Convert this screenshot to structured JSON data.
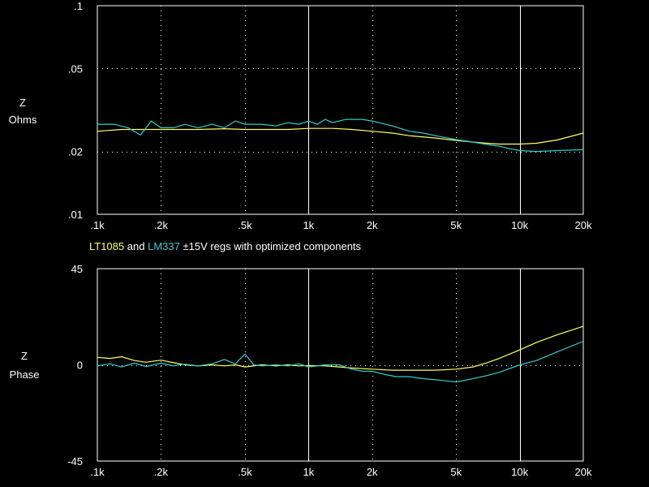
{
  "caption": {
    "series1": "LT1085",
    "and": "and",
    "series2": "LM337",
    "rest": "±15V regs with optimized components"
  },
  "colors": {
    "series1": "#ffff66",
    "series2": "#33cccc",
    "grid": "#ffffff"
  },
  "chart_data": [
    {
      "type": "line",
      "title": "",
      "ylabel": [
        "Z",
        "Ohms"
      ],
      "xlabel": "",
      "xscale": "log",
      "yscale": "log",
      "xlim": [
        100,
        20000
      ],
      "ylim": [
        0.01,
        0.1
      ],
      "xticks": [
        100,
        200,
        500,
        1000,
        2000,
        5000,
        10000,
        20000
      ],
      "xtick_labels": [
        ".1k",
        ".2k",
        ".5k",
        "1k",
        "2k",
        "5k",
        "10k",
        "20k"
      ],
      "yticks": [
        0.01,
        0.02,
        0.05,
        0.1
      ],
      "ytick_labels": [
        ".01",
        ".02",
        ".05",
        ".1"
      ],
      "grid": "dotted",
      "series": [
        {
          "name": "LT1085",
          "color": "#ffff66",
          "x": [
            100,
            130,
            160,
            200,
            250,
            300,
            400,
            500,
            600,
            800,
            1000,
            1300,
            1600,
            2000,
            2500,
            3000,
            4000,
            5000,
            6000,
            7000,
            8000,
            10000,
            12000,
            15000,
            20000
          ],
          "y": [
            0.025,
            0.0255,
            0.0255,
            0.0255,
            0.0255,
            0.0255,
            0.0257,
            0.0255,
            0.0255,
            0.0255,
            0.0258,
            0.0258,
            0.0255,
            0.025,
            0.0245,
            0.0238,
            0.0232,
            0.0226,
            0.0222,
            0.0219,
            0.0217,
            0.0217,
            0.0219,
            0.0227,
            0.0245
          ]
        },
        {
          "name": "LM337",
          "color": "#33cccc",
          "x": [
            100,
            120,
            140,
            160,
            180,
            200,
            230,
            260,
            300,
            350,
            400,
            450,
            500,
            600,
            700,
            800,
            900,
            1000,
            1100,
            1200,
            1300,
            1500,
            1800,
            2000,
            2500,
            3000,
            3500,
            4000,
            5000,
            6000,
            7000,
            8000,
            9000,
            10000,
            12000,
            15000,
            20000
          ],
          "y": [
            0.027,
            0.027,
            0.026,
            0.024,
            0.028,
            0.026,
            0.026,
            0.027,
            0.026,
            0.027,
            0.026,
            0.028,
            0.027,
            0.027,
            0.0265,
            0.0275,
            0.027,
            0.028,
            0.027,
            0.0285,
            0.0275,
            0.0285,
            0.0285,
            0.028,
            0.0265,
            0.025,
            0.0245,
            0.0238,
            0.0228,
            0.0222,
            0.0216,
            0.0212,
            0.0206,
            0.0202,
            0.02,
            0.0202,
            0.0204
          ]
        }
      ]
    },
    {
      "type": "line",
      "title": "",
      "ylabel": [
        "Z",
        "Phase"
      ],
      "xlabel": "",
      "xscale": "log",
      "yscale": "linear",
      "xlim": [
        100,
        20000
      ],
      "ylim": [
        -45,
        45
      ],
      "xticks": [
        100,
        200,
        500,
        1000,
        2000,
        5000,
        10000,
        20000
      ],
      "xtick_labels": [
        ".1k",
        ".2k",
        ".5k",
        "1k",
        "2k",
        "5k",
        "10k",
        "20k"
      ],
      "yticks": [
        -45,
        0,
        45
      ],
      "ytick_labels": [
        "-45",
        "0",
        "45"
      ],
      "grid": "dotted",
      "series": [
        {
          "name": "LT1085",
          "color": "#ffff66",
          "x": [
            100,
            115,
            130,
            150,
            170,
            200,
            230,
            260,
            300,
            350,
            400,
            450,
            500,
            600,
            700,
            800,
            900,
            1000,
            1200,
            1400,
            1600,
            2000,
            2500,
            3000,
            3500,
            4000,
            5000,
            6000,
            7000,
            8000,
            10000,
            12000,
            15000,
            20000
          ],
          "y": [
            3.5,
            3,
            3.8,
            2,
            1.2,
            2.2,
            1,
            0,
            -0.5,
            0,
            -0.5,
            0,
            -1,
            0,
            -0.5,
            0,
            -0.5,
            -0.3,
            -0.5,
            -1,
            -1.5,
            -2,
            -2.5,
            -2.5,
            -2.5,
            -2.5,
            -2,
            -1,
            1,
            3,
            7,
            10.5,
            14,
            18
          ]
        },
        {
          "name": "LM337",
          "color": "#33cccc",
          "x": [
            100,
            115,
            130,
            150,
            170,
            200,
            230,
            260,
            300,
            350,
            400,
            450,
            500,
            550,
            600,
            700,
            800,
            900,
            1000,
            1200,
            1400,
            1600,
            1800,
            2000,
            2300,
            2600,
            3000,
            3500,
            4000,
            4500,
            5000,
            6000,
            7000,
            8000,
            10000,
            12000,
            15000,
            20000
          ],
          "y": [
            -0.5,
            0.5,
            -1,
            0.8,
            -0.8,
            0.8,
            -0.5,
            0.3,
            -0.5,
            0.5,
            2.5,
            0.5,
            5,
            0,
            -0.5,
            0,
            -0.5,
            0.5,
            -1,
            0,
            0,
            -2,
            -3,
            -3,
            -4.5,
            -5.5,
            -5.5,
            -6.5,
            -7,
            -7.5,
            -8,
            -6.5,
            -5,
            -3.5,
            0,
            2,
            6,
            11
          ]
        }
      ]
    }
  ]
}
